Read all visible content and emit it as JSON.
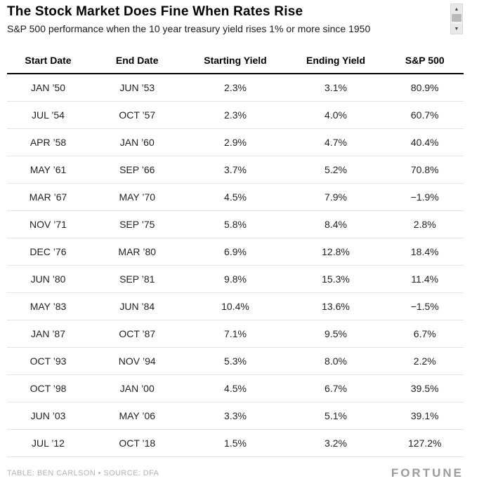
{
  "chart_data": {
    "type": "table",
    "title": "The Stock Market Does Fine When Rates Rise",
    "subtitle": "S&P 500 performance when the 10 year treasury yield rises 1% or more since 1950",
    "columns": [
      "Start Date",
      "End Date",
      "Starting Yield",
      "Ending Yield",
      "S&P 500"
    ],
    "rows": [
      [
        "JAN ’50",
        "JUN ’53",
        "2.3%",
        "3.1%",
        "80.9%"
      ],
      [
        "JUL ’54",
        "OCT ’57",
        "2.3%",
        "4.0%",
        "60.7%"
      ],
      [
        "APR ’58",
        "JAN ’60",
        "2.9%",
        "4.7%",
        "40.4%"
      ],
      [
        "MAY ’61",
        "SEP ’66",
        "3.7%",
        "5.2%",
        "70.8%"
      ],
      [
        "MAR ’67",
        "MAY ’70",
        "4.5%",
        "7.9%",
        "−1.9%"
      ],
      [
        "NOV ’71",
        "SEP ’75",
        "5.8%",
        "8.4%",
        "2.8%"
      ],
      [
        "DEC ’76",
        "MAR ’80",
        "6.9%",
        "12.8%",
        "18.4%"
      ],
      [
        "JUN ’80",
        "SEP ’81",
        "9.8%",
        "15.3%",
        "11.4%"
      ],
      [
        "MAY ’83",
        "JUN ’84",
        "10.4%",
        "13.6%",
        "−1.5%"
      ],
      [
        "JAN ’87",
        "OCT ’87",
        "7.1%",
        "9.5%",
        "6.7%"
      ],
      [
        "OCT ’93",
        "NOV ’94",
        "5.3%",
        "8.0%",
        "2.2%"
      ],
      [
        "OCT ’98",
        "JAN ’00",
        "4.5%",
        "6.7%",
        "39.5%"
      ],
      [
        "JUN ’03",
        "MAY ’06",
        "3.3%",
        "5.1%",
        "39.1%"
      ],
      [
        "JUL ’12",
        "OCT ’18",
        "1.5%",
        "3.2%",
        "127.2%"
      ]
    ],
    "layout": {
      "grid": "horizontal-row-dividers",
      "header_rule": "thick-black"
    }
  },
  "footer": {
    "credit": "TABLE: BEN CARLSON • SOURCE: DFA",
    "brand": "FORTUNE"
  },
  "icons": {
    "chevron_up": "▲",
    "chevron_down": "▼"
  },
  "colors": {
    "header_rule": "#000000",
    "row_divider": "#e4e4e4",
    "footer_text": "#b3b3b3",
    "brand_gray": "#9b9b9b"
  }
}
